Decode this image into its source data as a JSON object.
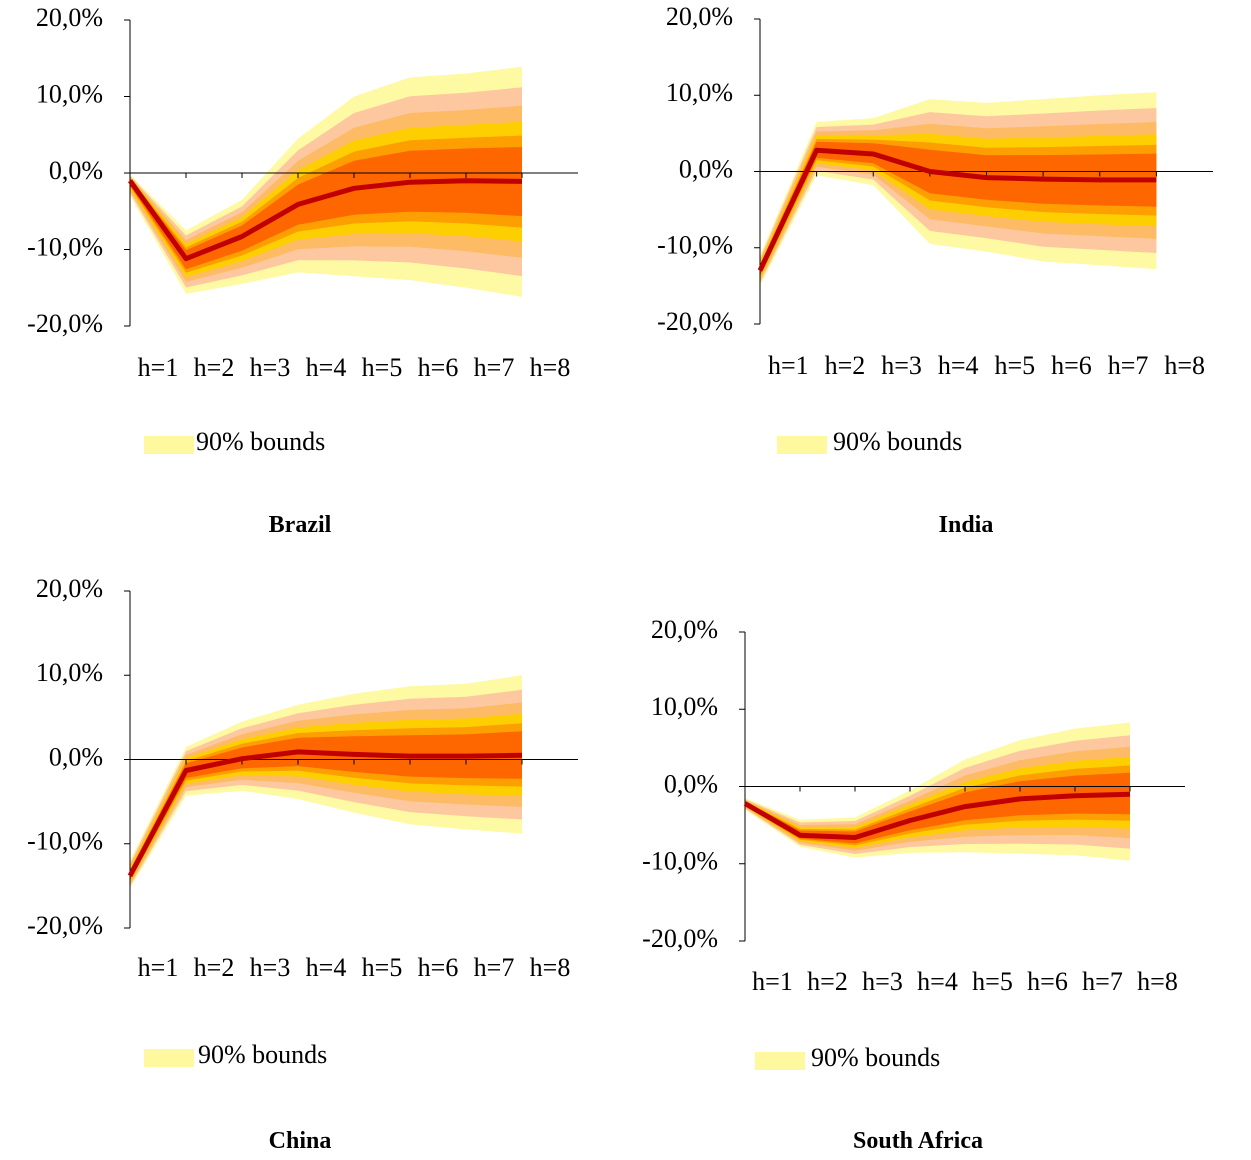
{
  "legend_label": "90% bounds",
  "colors": {
    "line": "#c00000",
    "bands": [
      "#fefaa3",
      "#fdc8a0",
      "#fdbb66",
      "#fecf00",
      "#fd9f00",
      "#fe6600"
    ]
  },
  "chart_data": [
    {
      "type": "area",
      "title": "Brazil",
      "categories": [
        "h=1",
        "h=2",
        "h=3",
        "h=4",
        "h=5",
        "h=6",
        "h=7",
        "h=8"
      ],
      "yticks": [
        "20,0%",
        "10,0%",
        "0,0%",
        "-10,0%",
        "-20,0%"
      ],
      "ylim": [
        -20,
        20
      ],
      "series": [
        {
          "values": [
            -1.0,
            -11.2,
            -8.3,
            -4.1,
            -2.0,
            -1.2,
            -1.0,
            -1.1
          ]
        }
      ],
      "bounds_90": {
        "upper": [
          -0.2,
          -7.5,
          -3.5,
          4.5,
          10.0,
          12.5,
          13.0,
          13.9
        ],
        "lower": [
          -3.0,
          -15.8,
          -14.5,
          -13.0,
          -13.5,
          -14.0,
          -15.0,
          -16.2
        ]
      }
    },
    {
      "type": "area",
      "title": "India",
      "categories": [
        "h=1",
        "h=2",
        "h=3",
        "h=4",
        "h=5",
        "h=6",
        "h=7",
        "h=8"
      ],
      "yticks": [
        "20,0%",
        "10,0%",
        "0,0%",
        "-10,0%",
        "-20,0%"
      ],
      "ylim": [
        -20,
        20
      ],
      "series": [
        {
          "values": [
            -13.0,
            2.8,
            2.3,
            0.0,
            -0.8,
            -1.0,
            -1.1,
            -1.1
          ]
        }
      ],
      "bounds_90": {
        "upper": [
          -11.0,
          6.5,
          7.0,
          9.5,
          9.0,
          9.5,
          10.0,
          10.4
        ],
        "lower": [
          -15.0,
          -0.5,
          -1.8,
          -9.5,
          -10.5,
          -11.8,
          -12.3,
          -12.8
        ]
      }
    },
    {
      "type": "area",
      "title": "China",
      "categories": [
        "h=1",
        "h=2",
        "h=3",
        "h=4",
        "h=5",
        "h=6",
        "h=7",
        "h=8"
      ],
      "yticks": [
        "20,0%",
        "10,0%",
        "0,0%",
        "-10,0%",
        "-20,0%"
      ],
      "ylim": [
        -20,
        20
      ],
      "series": [
        {
          "values": [
            -13.8,
            -1.3,
            0.1,
            0.9,
            0.6,
            0.4,
            0.4,
            0.5
          ]
        }
      ],
      "bounds_90": {
        "upper": [
          -12.0,
          1.5,
          4.5,
          6.5,
          7.8,
          8.7,
          9.0,
          10.0
        ],
        "lower": [
          -15.3,
          -4.3,
          -3.7,
          -4.7,
          -6.3,
          -7.7,
          -8.3,
          -8.8
        ]
      }
    },
    {
      "type": "area",
      "title": "South Africa",
      "categories": [
        "h=1",
        "h=2",
        "h=3",
        "h=4",
        "h=5",
        "h=6",
        "h=7",
        "h=8"
      ],
      "yticks": [
        "20,0%",
        "10,0%",
        "0,0%",
        "-10,0%",
        "-20,0%"
      ],
      "ylim": [
        -20,
        20
      ],
      "series": [
        {
          "values": [
            -2.2,
            -6.3,
            -6.6,
            -4.4,
            -2.6,
            -1.6,
            -1.2,
            -1.0
          ]
        }
      ],
      "bounds_90": {
        "upper": [
          -1.5,
          -4.3,
          -4.0,
          -0.5,
          3.5,
          6.0,
          7.5,
          8.3
        ],
        "lower": [
          -3.0,
          -7.8,
          -9.2,
          -8.6,
          -8.5,
          -8.7,
          -8.9,
          -9.6
        ]
      }
    }
  ]
}
